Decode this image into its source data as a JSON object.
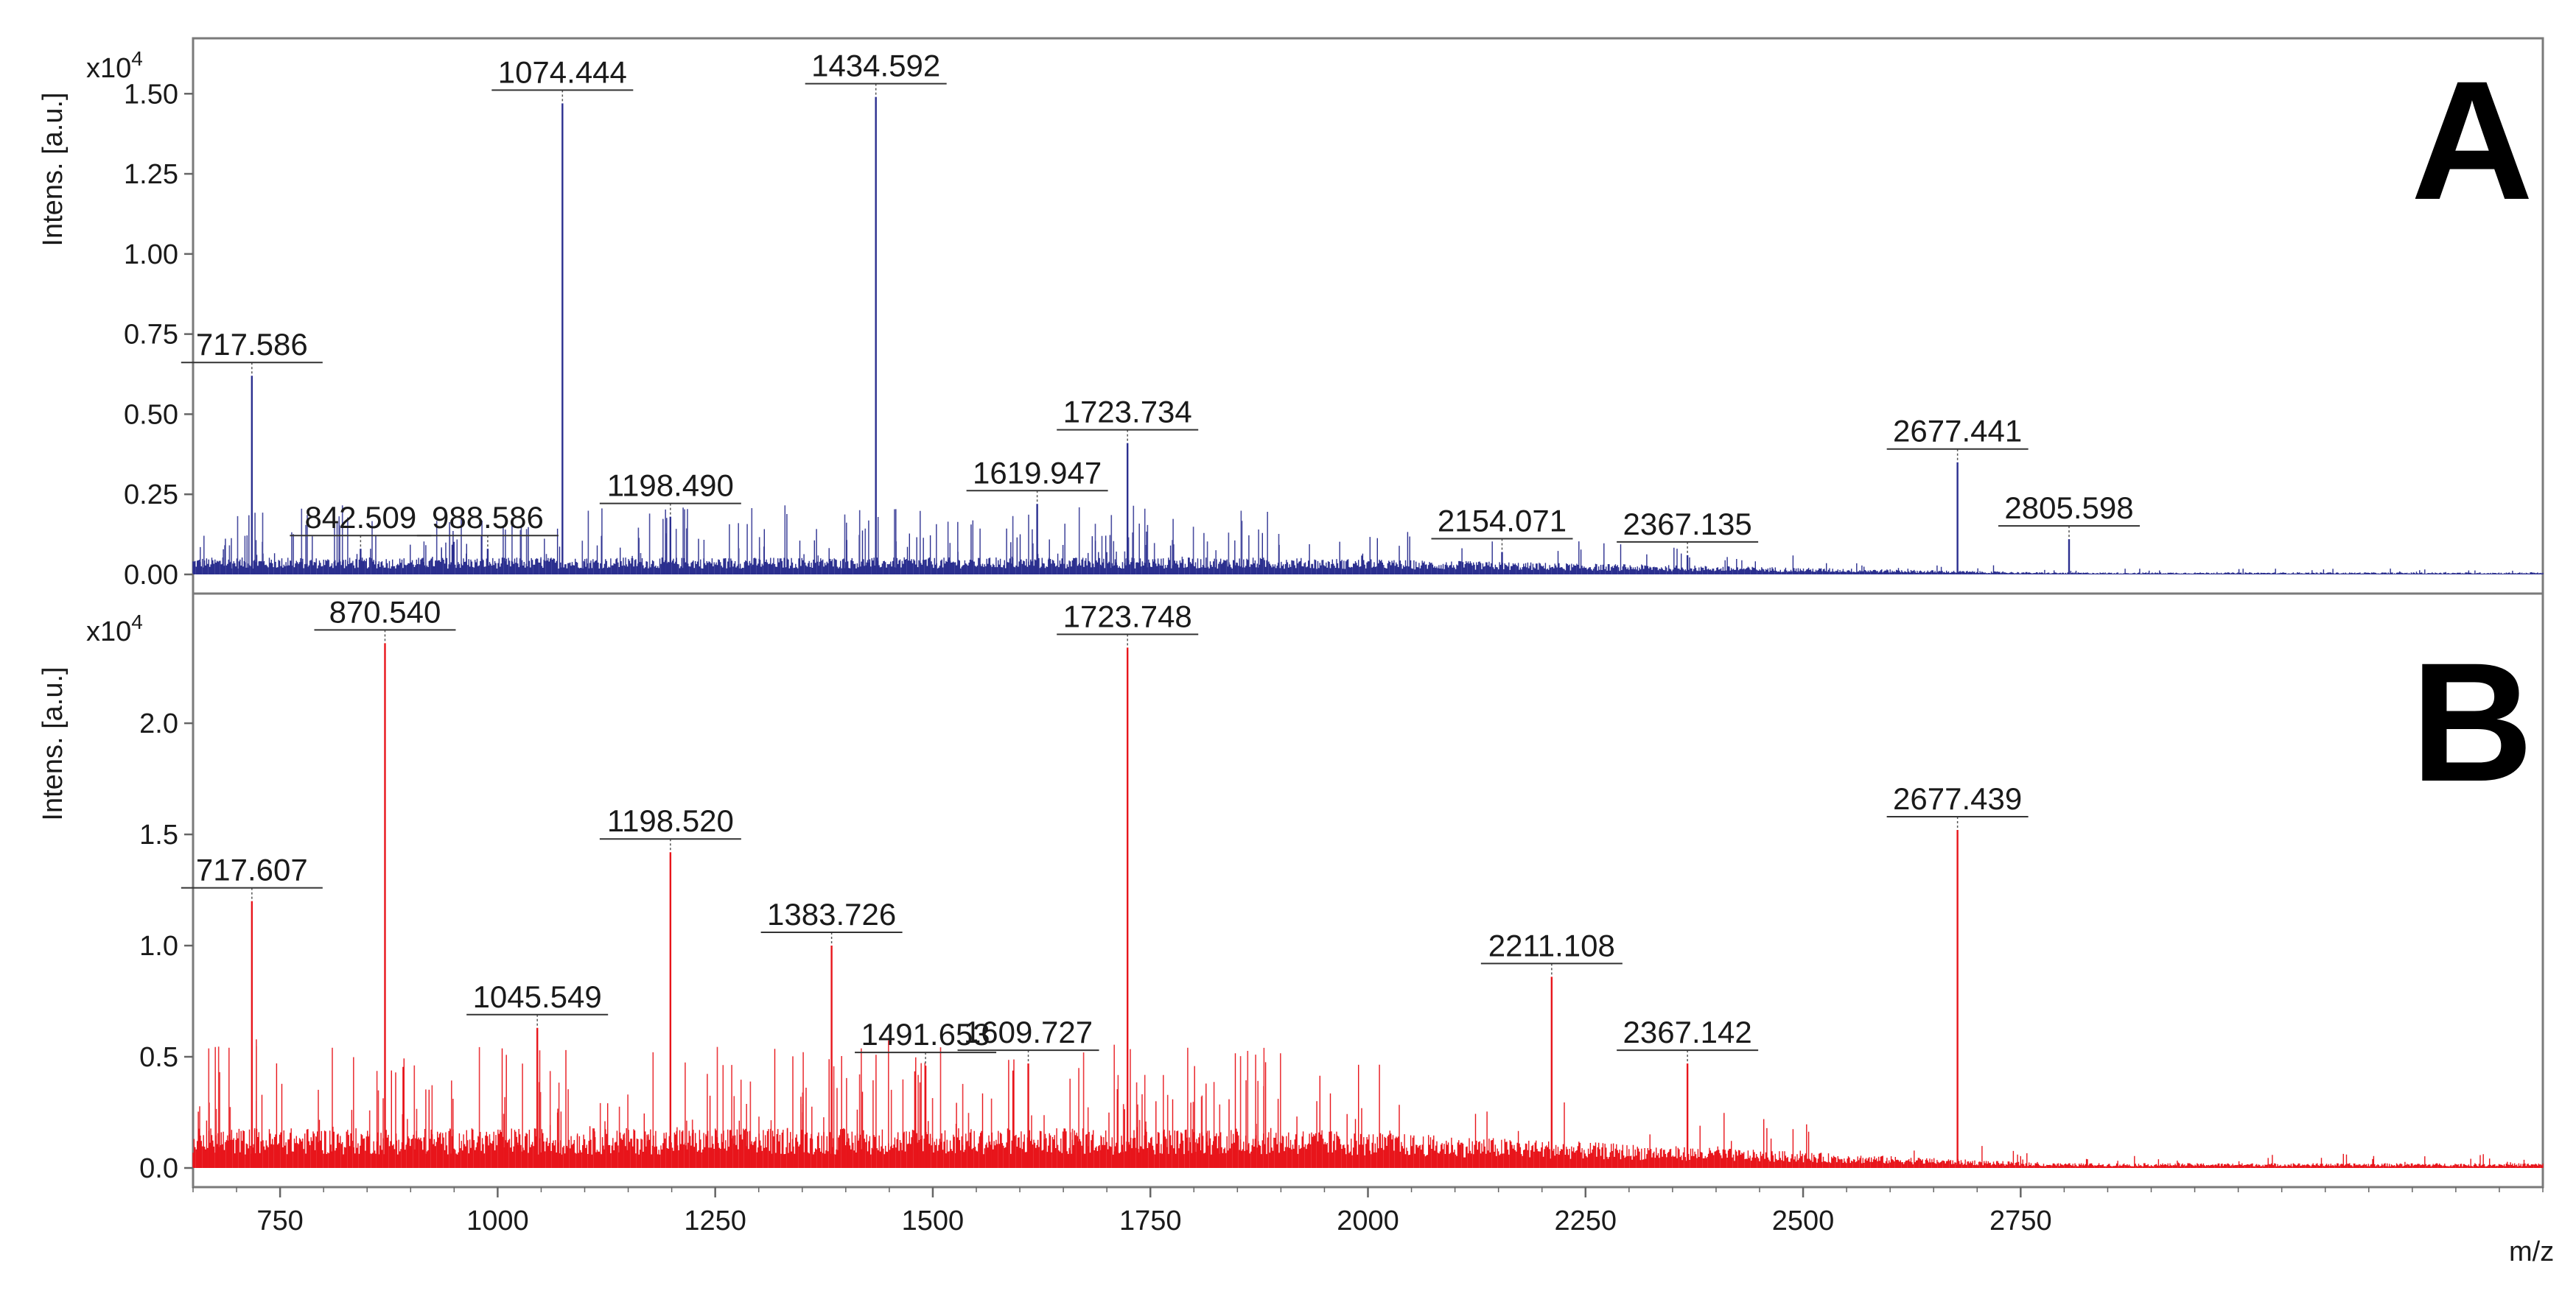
{
  "chart_data": [
    {
      "type": "line",
      "panel": "A",
      "panel_label": "A",
      "ylabel": "Intens. [a.u.]",
      "y_multiplier": "x10",
      "y_multiplier_exp": "4",
      "xlim": [
        650,
        3350
      ],
      "ylim": [
        0,
        1.65
      ],
      "yticks": [
        0.0,
        0.25,
        0.5,
        0.75,
        1.0,
        1.25,
        1.5
      ],
      "ytick_labels": [
        "0.00",
        "0.25",
        "0.50",
        "0.75",
        "1.00",
        "1.25",
        "1.50"
      ],
      "color": "#2b2f8f",
      "peaks": [
        {
          "x": 717.586,
          "y": 0.62,
          "label": "717.586"
        },
        {
          "x": 842.509,
          "y": 0.08,
          "label": "842.509"
        },
        {
          "x": 988.586,
          "y": 0.08,
          "label": "988.586"
        },
        {
          "x": 1074.444,
          "y": 1.47,
          "label": "1074.444"
        },
        {
          "x": 1198.49,
          "y": 0.18,
          "label": "1198.490"
        },
        {
          "x": 1434.592,
          "y": 1.49,
          "label": "1434.592"
        },
        {
          "x": 1619.947,
          "y": 0.22,
          "label": "1619.947"
        },
        {
          "x": 1723.734,
          "y": 0.41,
          "label": "1723.734"
        },
        {
          "x": 2154.071,
          "y": 0.07,
          "label": "2154.071"
        },
        {
          "x": 2367.135,
          "y": 0.06,
          "label": "2367.135"
        },
        {
          "x": 2677.441,
          "y": 0.35,
          "label": "2677.441"
        },
        {
          "x": 2805.598,
          "y": 0.11,
          "label": "2805.598"
        }
      ]
    },
    {
      "type": "line",
      "panel": "B",
      "panel_label": "B",
      "ylabel": "Intens. [a.u.]",
      "y_multiplier": "x10",
      "y_multiplier_exp": "4",
      "xlabel": "m/z",
      "xlim": [
        650,
        3350
      ],
      "ylim": [
        0,
        2.55
      ],
      "xticks": [
        750,
        1000,
        1250,
        1500,
        1750,
        2000,
        2250,
        2500,
        2750
      ],
      "xtick_labels": [
        "750",
        "1000",
        "1250",
        "1500",
        "1750",
        "2000",
        "2250",
        "2500",
        "2750"
      ],
      "yticks": [
        0.0,
        0.5,
        1.0,
        1.5,
        2.0
      ],
      "ytick_labels": [
        "0.0",
        "0.5",
        "1.0",
        "1.5",
        "2.0"
      ],
      "color": "#e8151b",
      "peaks": [
        {
          "x": 717.607,
          "y": 1.2,
          "label": "717.607"
        },
        {
          "x": 870.54,
          "y": 2.36,
          "label": "870.540"
        },
        {
          "x": 1045.549,
          "y": 0.63,
          "label": "1045.549"
        },
        {
          "x": 1198.52,
          "y": 1.42,
          "label": "1198.520"
        },
        {
          "x": 1383.726,
          "y": 1.0,
          "label": "1383.726"
        },
        {
          "x": 1491.653,
          "y": 0.46,
          "label": "1491.653"
        },
        {
          "x": 1609.727,
          "y": 0.47,
          "label": "1609.727"
        },
        {
          "x": 1723.748,
          "y": 2.34,
          "label": "1723.748"
        },
        {
          "x": 2211.108,
          "y": 0.86,
          "label": "2211.108"
        },
        {
          "x": 2367.142,
          "y": 0.47,
          "label": "2367.142"
        },
        {
          "x": 2677.439,
          "y": 1.52,
          "label": "2677.439"
        }
      ]
    }
  ]
}
